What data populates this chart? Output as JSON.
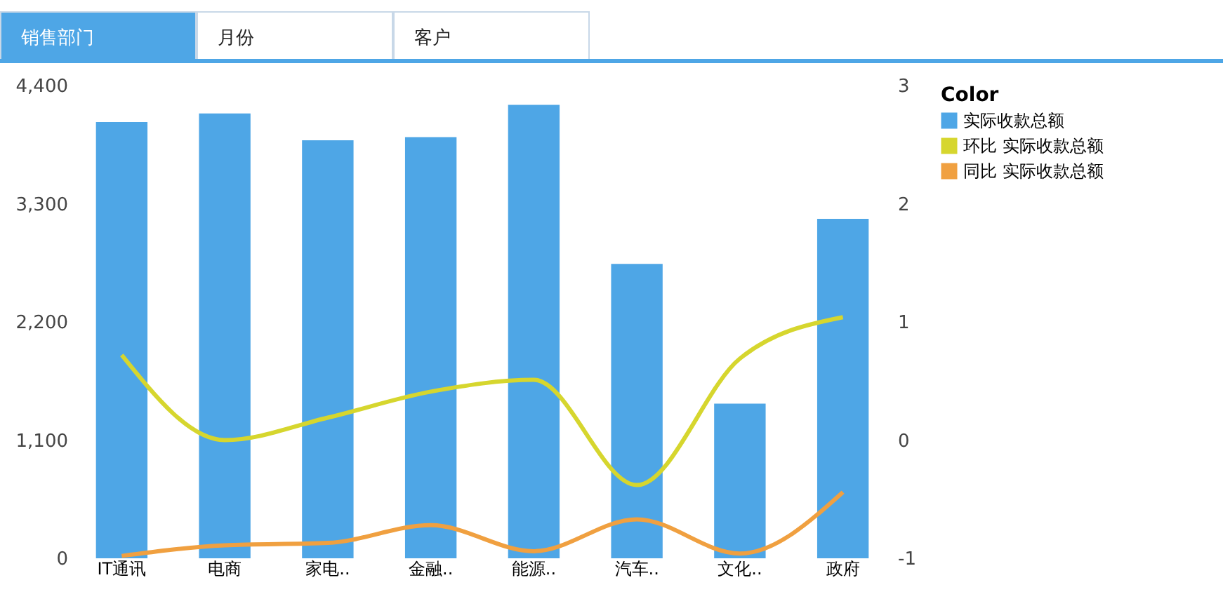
{
  "chart_data": {
    "type": "bar",
    "categories": [
      "IT通讯",
      "电商",
      "家电..",
      "金融..",
      "能源..",
      "汽车..",
      "文化..",
      "政府"
    ],
    "legend_title": "Color",
    "legend": "right",
    "grid": false,
    "annotations": [
      "销售部门",
      "月份",
      "客户"
    ],
    "ylim": [
      0,
      4400
    ],
    "yticks": [
      0,
      {
        "value": 1100,
        "label": "1,100"
      },
      {
        "value": 2200,
        "label": "2,200"
      },
      {
        "value": 3300,
        "label": "3,300"
      },
      {
        "value": 4400,
        "label": "4,400"
      }
    ],
    "y2lim": [
      -1,
      3
    ],
    "y2ticks": [
      -1,
      0,
      1,
      2,
      3
    ],
    "series": [
      {
        "name": "实际收款总额",
        "color": "#4ea6e6",
        "values": [
          4060,
          4140,
          3890,
          3920,
          4220,
          2740,
          1440,
          3160
        ]
      },
      {
        "name": "环比 实际收款总额",
        "type": "line",
        "axis": "y2",
        "color": "#d6d62e",
        "values": [
          0.72,
          0.0,
          0.19,
          0.41,
          0.51,
          -0.38,
          0.69,
          1.04
        ]
      },
      {
        "name": "同比 实际收款总额",
        "type": "line",
        "axis": "y2",
        "color": "#f0a040",
        "values": [
          -0.98,
          -0.89,
          -0.87,
          -0.72,
          -0.94,
          -0.67,
          -0.96,
          -0.44
        ]
      }
    ]
  }
}
